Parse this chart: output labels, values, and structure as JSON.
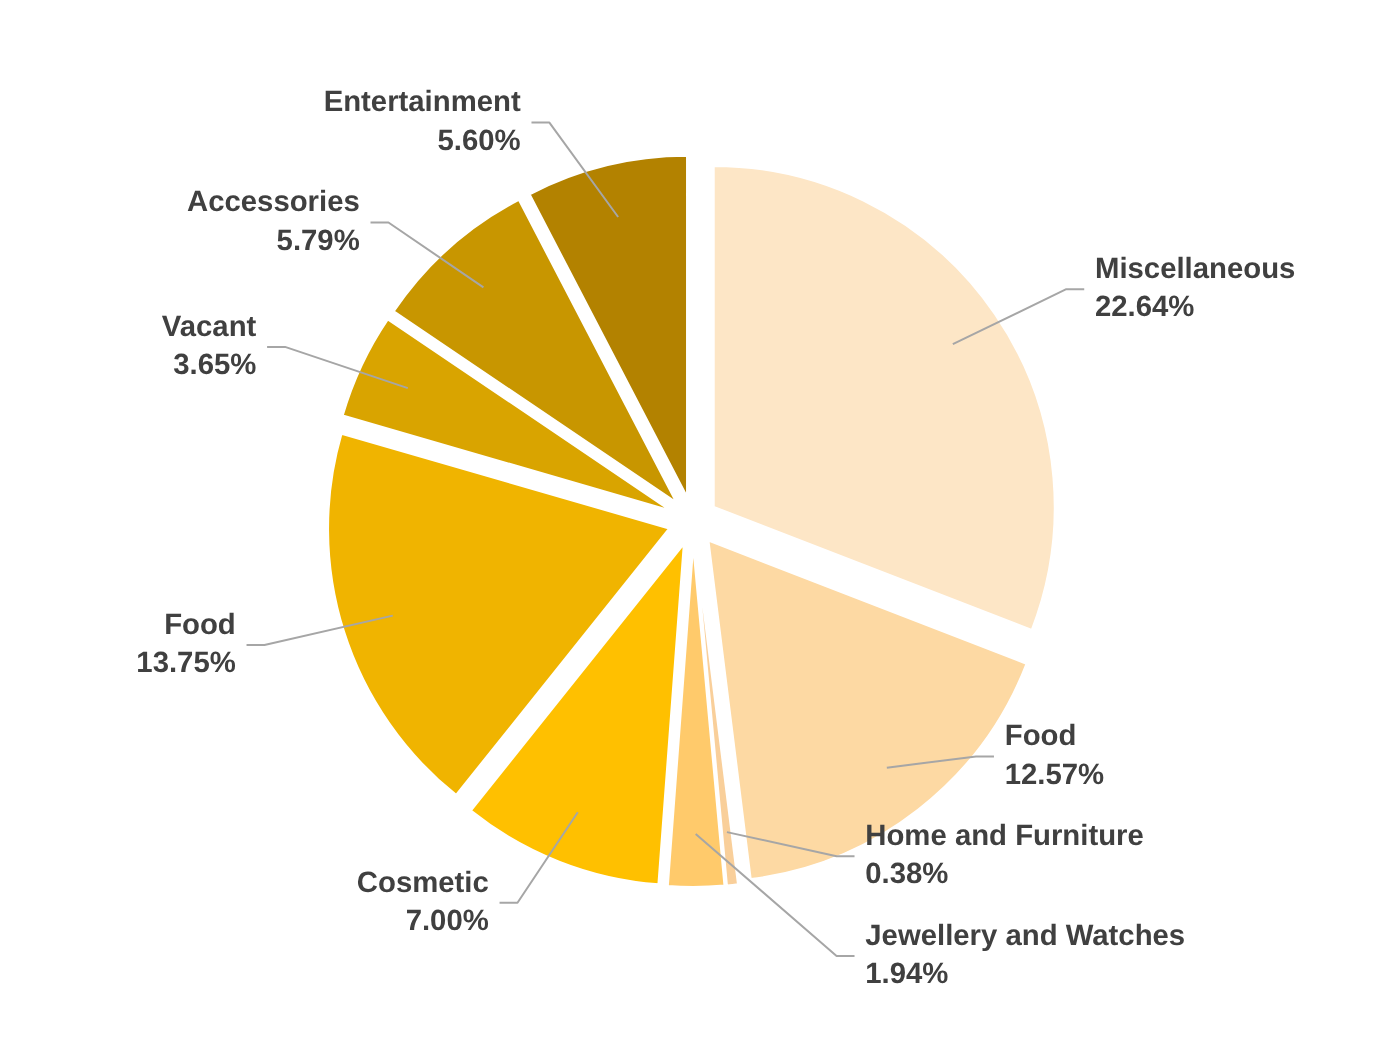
{
  "chart_data": {
    "type": "pie",
    "categories": [
      "Miscellaneous",
      "Food",
      "Home and Furniture",
      "Jewellery and Watches",
      "Cosmetic",
      "Food",
      "Vacant",
      "Accessories",
      "Entertainment"
    ],
    "values": [
      22.64,
      12.57,
      0.38,
      1.94,
      7.0,
      13.75,
      3.65,
      5.79,
      5.6
    ],
    "value_labels": [
      "22.64%",
      "12.57%",
      "0.38%",
      "1.94%",
      "7.00%",
      "13.75%",
      "3.65%",
      "5.79%",
      "5.60%"
    ],
    "colors": [
      "#fde6c6",
      "#fdd9a3",
      "#f9cf9a",
      "#ffca6b",
      "#ffc000",
      "#f0b400",
      "#d9a400",
      "#c89600",
      "#b38200"
    ]
  }
}
